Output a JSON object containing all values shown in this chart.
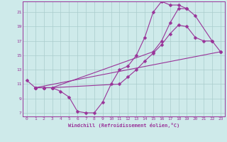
{
  "bg_color": "#ceeaea",
  "grid_color": "#aacccc",
  "line_color": "#993399",
  "xlabel": "Windchill (Refroidissement éolien,°C)",
  "xlim": [
    -0.5,
    23.5
  ],
  "ylim": [
    6.5,
    22.5
  ],
  "xticks": [
    0,
    1,
    2,
    3,
    4,
    5,
    6,
    7,
    8,
    9,
    10,
    11,
    12,
    13,
    14,
    15,
    16,
    17,
    18,
    19,
    20,
    21,
    22,
    23
  ],
  "yticks": [
    7,
    9,
    11,
    13,
    15,
    17,
    19,
    21
  ],
  "line1_x": [
    0,
    1,
    2,
    3,
    4,
    5,
    6,
    7,
    8,
    9,
    10,
    11,
    12,
    13,
    14,
    15,
    16,
    17,
    18,
    19
  ],
  "line1_y": [
    11.5,
    10.5,
    10.5,
    10.5,
    10.0,
    9.2,
    7.2,
    7.0,
    7.0,
    8.5,
    11.0,
    13.0,
    13.5,
    15.0,
    17.5,
    21.0,
    22.5,
    22.0,
    22.0,
    21.5
  ],
  "line2_x": [
    1,
    2,
    3,
    15,
    16,
    17,
    18,
    19,
    20,
    22,
    23
  ],
  "line2_y": [
    10.5,
    10.5,
    10.5,
    15.5,
    17.0,
    19.5,
    21.5,
    21.5,
    20.5,
    17.0,
    15.5
  ],
  "line3_x": [
    1,
    2,
    3,
    11,
    12,
    13,
    14,
    15,
    16,
    17,
    18,
    19,
    20,
    21,
    22
  ],
  "line3_y": [
    10.5,
    10.5,
    10.5,
    11.0,
    12.0,
    13.0,
    14.2,
    15.3,
    16.5,
    18.0,
    19.2,
    19.0,
    17.5,
    17.0,
    17.0
  ],
  "line4_x": [
    1,
    23
  ],
  "line4_y": [
    10.5,
    15.5
  ]
}
